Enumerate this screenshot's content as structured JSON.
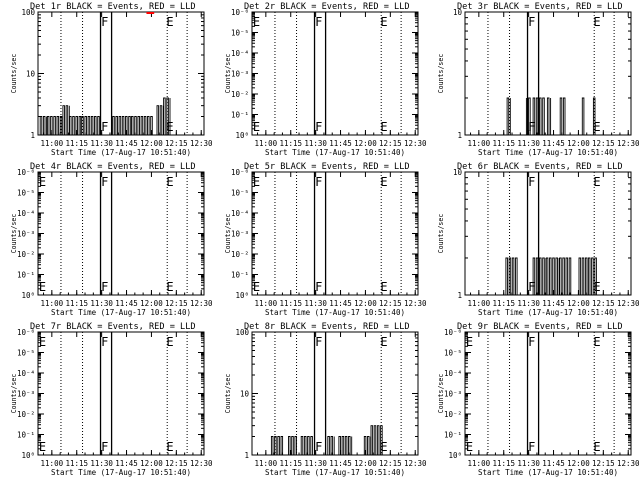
{
  "figure": {
    "background": "#ffffff",
    "event_color": "#000000",
    "lld_color": "#ff0000"
  },
  "chart_data": [
    {
      "type": "line",
      "title": "Det 1r BLACK = Events, RED = LLD",
      "xlabel": "Start Time (17-Aug-17 10:51:40)",
      "ylabel": "Counts/sec",
      "x_ticks": [
        "11:00",
        "11:15",
        "11:30",
        "11:45",
        "12:00",
        "12:15",
        "12:30"
      ],
      "x_range": [
        "10:51:40",
        "12:31:40"
      ],
      "y_scale": "log",
      "y_ticks": [
        "1",
        "10",
        "100"
      ],
      "ylim": [
        1,
        100
      ],
      "markers": {
        "F": "11:31:30",
        "E": "12:10:50"
      },
      "verticals": [
        "11:29:20",
        "11:36:00"
      ],
      "dotted_lines": [
        "11:05:30",
        "11:18:30",
        "12:09:30",
        "12:21:30"
      ],
      "events": [
        {
          "start": "10:53:00",
          "end": "10:57:20",
          "y": 2
        },
        {
          "start": "10:57:20",
          "end": "11:06:40",
          "y": 2
        },
        {
          "start": "11:06:40",
          "end": "11:10:40",
          "y": 3
        },
        {
          "start": "11:10:40",
          "end": "11:18:00",
          "y": 2
        },
        {
          "start": "11:18:00",
          "end": "11:28:40",
          "y": 2
        },
        {
          "start": "11:36:40",
          "end": "11:48:00",
          "y": 2
        },
        {
          "start": "11:48:00",
          "end": "12:00:40",
          "y": 2
        },
        {
          "start": "12:03:20",
          "end": "12:07:20",
          "y": 3
        },
        {
          "start": "12:07:20",
          "end": "12:11:20",
          "y": 4
        }
      ],
      "lld": [
        {
          "start": "11:57:00",
          "end": "12:01:40",
          "y": 100
        }
      ]
    },
    {
      "type": "line",
      "title": "Det 2r BLACK = Events, RED = LLD",
      "xlabel": "Start Time (17-Aug-17 10:51:40)",
      "ylabel": "Counts/sec",
      "x_ticks": [
        "11:00",
        "11:15",
        "11:30",
        "11:45",
        "12:00",
        "12:15",
        "12:30"
      ],
      "x_range": [
        "10:51:40",
        "12:31:40"
      ],
      "y_scale": "log",
      "y_ticks": [
        "10⁰",
        "10⁻¹",
        "10⁻²",
        "10⁻³",
        "10⁻⁴",
        "10⁻⁵",
        "10⁻⁶"
      ],
      "ylim": [
        1e-06,
        1
      ],
      "markers": {
        "F": "11:31:30",
        "E": "12:10:50",
        "E_left": "10:52:10"
      },
      "verticals": [
        "11:29:20",
        "11:36:00"
      ],
      "dotted_lines": [
        "11:05:30",
        "11:18:30",
        "12:09:30",
        "12:21:30"
      ],
      "events": [],
      "lld": []
    },
    {
      "type": "line",
      "title": "Det 3r BLACK = Events, RED = LLD",
      "xlabel": "Start Time (17-Aug-17 10:51:40)",
      "ylabel": "Counts/sec",
      "x_ticks": [
        "11:00",
        "11:15",
        "11:30",
        "11:45",
        "12:00",
        "12:15",
        "12:30"
      ],
      "x_range": [
        "10:51:40",
        "12:31:40"
      ],
      "y_scale": "log",
      "y_ticks": [
        "1",
        "10"
      ],
      "ylim": [
        1,
        10
      ],
      "markers": {
        "F": "11:31:30",
        "E": "12:10:50"
      },
      "verticals": [
        "11:29:20",
        "11:36:00"
      ],
      "dotted_lines": [
        "11:05:30",
        "11:18:30",
        "12:09:30",
        "12:21:30"
      ],
      "events": [
        {
          "start": "11:17:00",
          "end": "11:19:40",
          "y": 2
        },
        {
          "start": "11:28:40",
          "end": "11:29:20",
          "y": 2
        },
        {
          "start": "11:30:00",
          "end": "11:31:20",
          "y": 2
        },
        {
          "start": "11:32:40",
          "end": "11:40:00",
          "y": 2
        },
        {
          "start": "11:41:20",
          "end": "11:43:20",
          "y": 2
        },
        {
          "start": "11:49:00",
          "end": "11:52:00",
          "y": 2
        },
        {
          "start": "12:02:20",
          "end": "12:03:40",
          "y": 2
        },
        {
          "start": "12:09:00",
          "end": "12:10:40",
          "y": 2
        }
      ],
      "lld": []
    },
    {
      "type": "line",
      "title": "Det 4r BLACK = Events, RED = LLD",
      "xlabel": "Start Time (17-Aug-17 10:51:40)",
      "ylabel": "Counts/sec",
      "x_ticks": [
        "11:00",
        "11:15",
        "11:30",
        "11:45",
        "12:00",
        "12:15",
        "12:30"
      ],
      "x_range": [
        "10:51:40",
        "12:31:40"
      ],
      "y_scale": "log",
      "y_ticks": [
        "10⁰",
        "10⁻¹",
        "10⁻²",
        "10⁻³",
        "10⁻⁴",
        "10⁻⁵",
        "10⁻⁶"
      ],
      "ylim": [
        1e-06,
        1
      ],
      "markers": {
        "F": "11:31:30",
        "E": "12:10:50",
        "E_left": "10:52:10"
      },
      "verticals": [
        "11:29:20",
        "11:36:00"
      ],
      "dotted_lines": [
        "11:05:30",
        "11:18:30",
        "12:09:30",
        "12:21:30"
      ],
      "events": [],
      "lld": []
    },
    {
      "type": "line",
      "title": "Det 5r BLACK = Events, RED = LLD",
      "xlabel": "Start Time (17-Aug-17 10:51:40)",
      "ylabel": "Counts/sec",
      "x_ticks": [
        "11:00",
        "11:15",
        "11:30",
        "11:45",
        "12:00",
        "12:15",
        "12:30"
      ],
      "x_range": [
        "10:51:40",
        "12:31:40"
      ],
      "y_scale": "log",
      "y_ticks": [
        "10⁰",
        "10⁻¹",
        "10⁻²",
        "10⁻³",
        "10⁻⁴",
        "10⁻⁵",
        "10⁻⁶"
      ],
      "ylim": [
        1e-06,
        1
      ],
      "markers": {
        "F": "11:31:30",
        "E": "12:10:50",
        "E_left": "10:52:10"
      },
      "verticals": [
        "11:29:20",
        "11:36:00"
      ],
      "dotted_lines": [
        "11:05:30",
        "11:18:30",
        "12:09:30",
        "12:21:30"
      ],
      "events": [],
      "lld": []
    },
    {
      "type": "line",
      "title": "Det 6r BLACK = Events, RED = LLD",
      "xlabel": "Start Time (17-Aug-17 10:51:40)",
      "ylabel": "Counts/sec",
      "x_ticks": [
        "11:00",
        "11:15",
        "11:30",
        "11:45",
        "12:00",
        "12:15",
        "12:30"
      ],
      "x_range": [
        "10:51:40",
        "12:31:40"
      ],
      "y_scale": "log",
      "y_ticks": [
        "1",
        "10"
      ],
      "ylim": [
        1,
        10
      ],
      "markers": {
        "F": "11:31:30",
        "E": "12:10:50"
      },
      "verticals": [
        "11:29:20",
        "11:36:00"
      ],
      "dotted_lines": [
        "11:05:30",
        "11:18:30",
        "12:09:30",
        "12:21:30"
      ],
      "events": [
        {
          "start": "11:16:20",
          "end": "11:23:40",
          "y": 2
        },
        {
          "start": "11:32:40",
          "end": "11:40:40",
          "y": 2
        },
        {
          "start": "11:40:40",
          "end": "11:48:40",
          "y": 2
        },
        {
          "start": "11:48:40",
          "end": "11:56:00",
          "y": 2
        },
        {
          "start": "12:00:20",
          "end": "12:06:00",
          "y": 2
        },
        {
          "start": "12:06:00",
          "end": "12:11:20",
          "y": 2
        }
      ],
      "lld": []
    },
    {
      "type": "line",
      "title": "Det 7r BLACK = Events, RED = LLD",
      "xlabel": "Start Time (17-Aug-17 10:51:40)",
      "ylabel": "Counts/sec",
      "x_ticks": [
        "11:00",
        "11:15",
        "11:30",
        "11:45",
        "12:00",
        "12:15",
        "12:30"
      ],
      "x_range": [
        "10:51:40",
        "12:31:40"
      ],
      "y_scale": "log",
      "y_ticks": [
        "10⁰",
        "10⁻¹",
        "10⁻²",
        "10⁻³",
        "10⁻⁴",
        "10⁻⁵",
        "10⁻⁶"
      ],
      "ylim": [
        1e-06,
        1
      ],
      "markers": {
        "F": "11:31:30",
        "E": "12:10:50",
        "E_left": "10:52:10"
      },
      "verticals": [
        "11:29:20",
        "11:36:00"
      ],
      "dotted_lines": [
        "11:05:30",
        "11:18:30",
        "12:09:30",
        "12:21:30"
      ],
      "events": [],
      "lld": []
    },
    {
      "type": "line",
      "title": "Det 8r BLACK = Events, RED = LLD",
      "xlabel": "Start Time (17-Aug-17 10:51:40)",
      "ylabel": "Counts/sec",
      "x_ticks": [
        "11:00",
        "11:15",
        "11:30",
        "11:45",
        "12:00",
        "12:15",
        "12:30"
      ],
      "x_range": [
        "10:51:40",
        "12:31:40"
      ],
      "y_scale": "log",
      "y_ticks": [
        "1",
        "10",
        "100"
      ],
      "ylim": [
        1,
        100
      ],
      "markers": {
        "F": "11:31:30",
        "E": "12:10:50"
      },
      "verticals": [
        "11:29:20",
        "11:36:00"
      ],
      "dotted_lines": [
        "11:05:30",
        "11:18:30",
        "12:09:30",
        "12:21:30"
      ],
      "events": [
        {
          "start": "11:03:20",
          "end": "11:10:40",
          "y": 2
        },
        {
          "start": "11:13:40",
          "end": "11:18:40",
          "y": 2
        },
        {
          "start": "11:21:20",
          "end": "11:28:40",
          "y": 2
        },
        {
          "start": "11:37:20",
          "end": "11:41:20",
          "y": 2
        },
        {
          "start": "11:44:00",
          "end": "11:52:40",
          "y": 2
        },
        {
          "start": "11:59:20",
          "end": "12:03:20",
          "y": 2
        },
        {
          "start": "12:03:20",
          "end": "12:10:40",
          "y": 3
        }
      ],
      "lld": []
    },
    {
      "type": "line",
      "title": "Det 9r BLACK = Events, RED = LLD",
      "xlabel": "Start Time (17-Aug-17 10:51:40)",
      "ylabel": "Counts/sec",
      "x_ticks": [
        "11:00",
        "11:15",
        "11:30",
        "11:45",
        "12:00",
        "12:15",
        "12:30"
      ],
      "x_range": [
        "10:51:40",
        "12:31:40"
      ],
      "y_scale": "log",
      "y_ticks": [
        "10⁰",
        "10⁻¹",
        "10⁻²",
        "10⁻³",
        "10⁻⁴",
        "10⁻⁵",
        "10⁻⁶"
      ],
      "ylim": [
        1e-06,
        1
      ],
      "markers": {
        "F": "11:31:30",
        "E": "12:10:50",
        "E_left": "10:52:10"
      },
      "verticals": [
        "11:29:20",
        "11:36:00"
      ],
      "dotted_lines": [
        "11:05:30",
        "11:18:30",
        "12:09:30",
        "12:21:30"
      ],
      "events": [],
      "lld": []
    }
  ]
}
